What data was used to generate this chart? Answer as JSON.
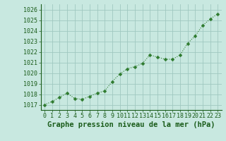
{
  "x": [
    0,
    1,
    2,
    3,
    4,
    5,
    6,
    7,
    8,
    9,
    10,
    11,
    12,
    13,
    14,
    15,
    16,
    17,
    18,
    19,
    20,
    21,
    22,
    23
  ],
  "y": [
    1017.0,
    1017.3,
    1017.7,
    1018.1,
    1017.6,
    1017.5,
    1017.8,
    1018.1,
    1018.3,
    1019.2,
    1019.9,
    1020.4,
    1020.6,
    1020.9,
    1021.7,
    1021.5,
    1021.3,
    1021.3,
    1021.7,
    1022.8,
    1023.5,
    1024.5,
    1025.1,
    1025.6
  ],
  "line_color": "#2d7a2d",
  "marker_color": "#2d7a2d",
  "bg_color": "#c8e8e0",
  "grid_color": "#a0c8c0",
  "xlabel": "Graphe pression niveau de la mer (hPa)",
  "xlabel_color": "#1a5c1a",
  "ylim": [
    1016.5,
    1026.5
  ],
  "yticks": [
    1017,
    1018,
    1019,
    1020,
    1021,
    1022,
    1023,
    1024,
    1025,
    1026
  ],
  "xticks": [
    0,
    1,
    2,
    3,
    4,
    5,
    6,
    7,
    8,
    9,
    10,
    11,
    12,
    13,
    14,
    15,
    16,
    17,
    18,
    19,
    20,
    21,
    22,
    23
  ],
  "xtick_labels": [
    "0",
    "1",
    "2",
    "3",
    "4",
    "5",
    "6",
    "7",
    "8",
    "9",
    "10",
    "11",
    "12",
    "13",
    "14",
    "15",
    "16",
    "17",
    "18",
    "19",
    "20",
    "21",
    "22",
    "23"
  ],
  "tick_fontsize": 6,
  "xlabel_fontsize": 7.5
}
